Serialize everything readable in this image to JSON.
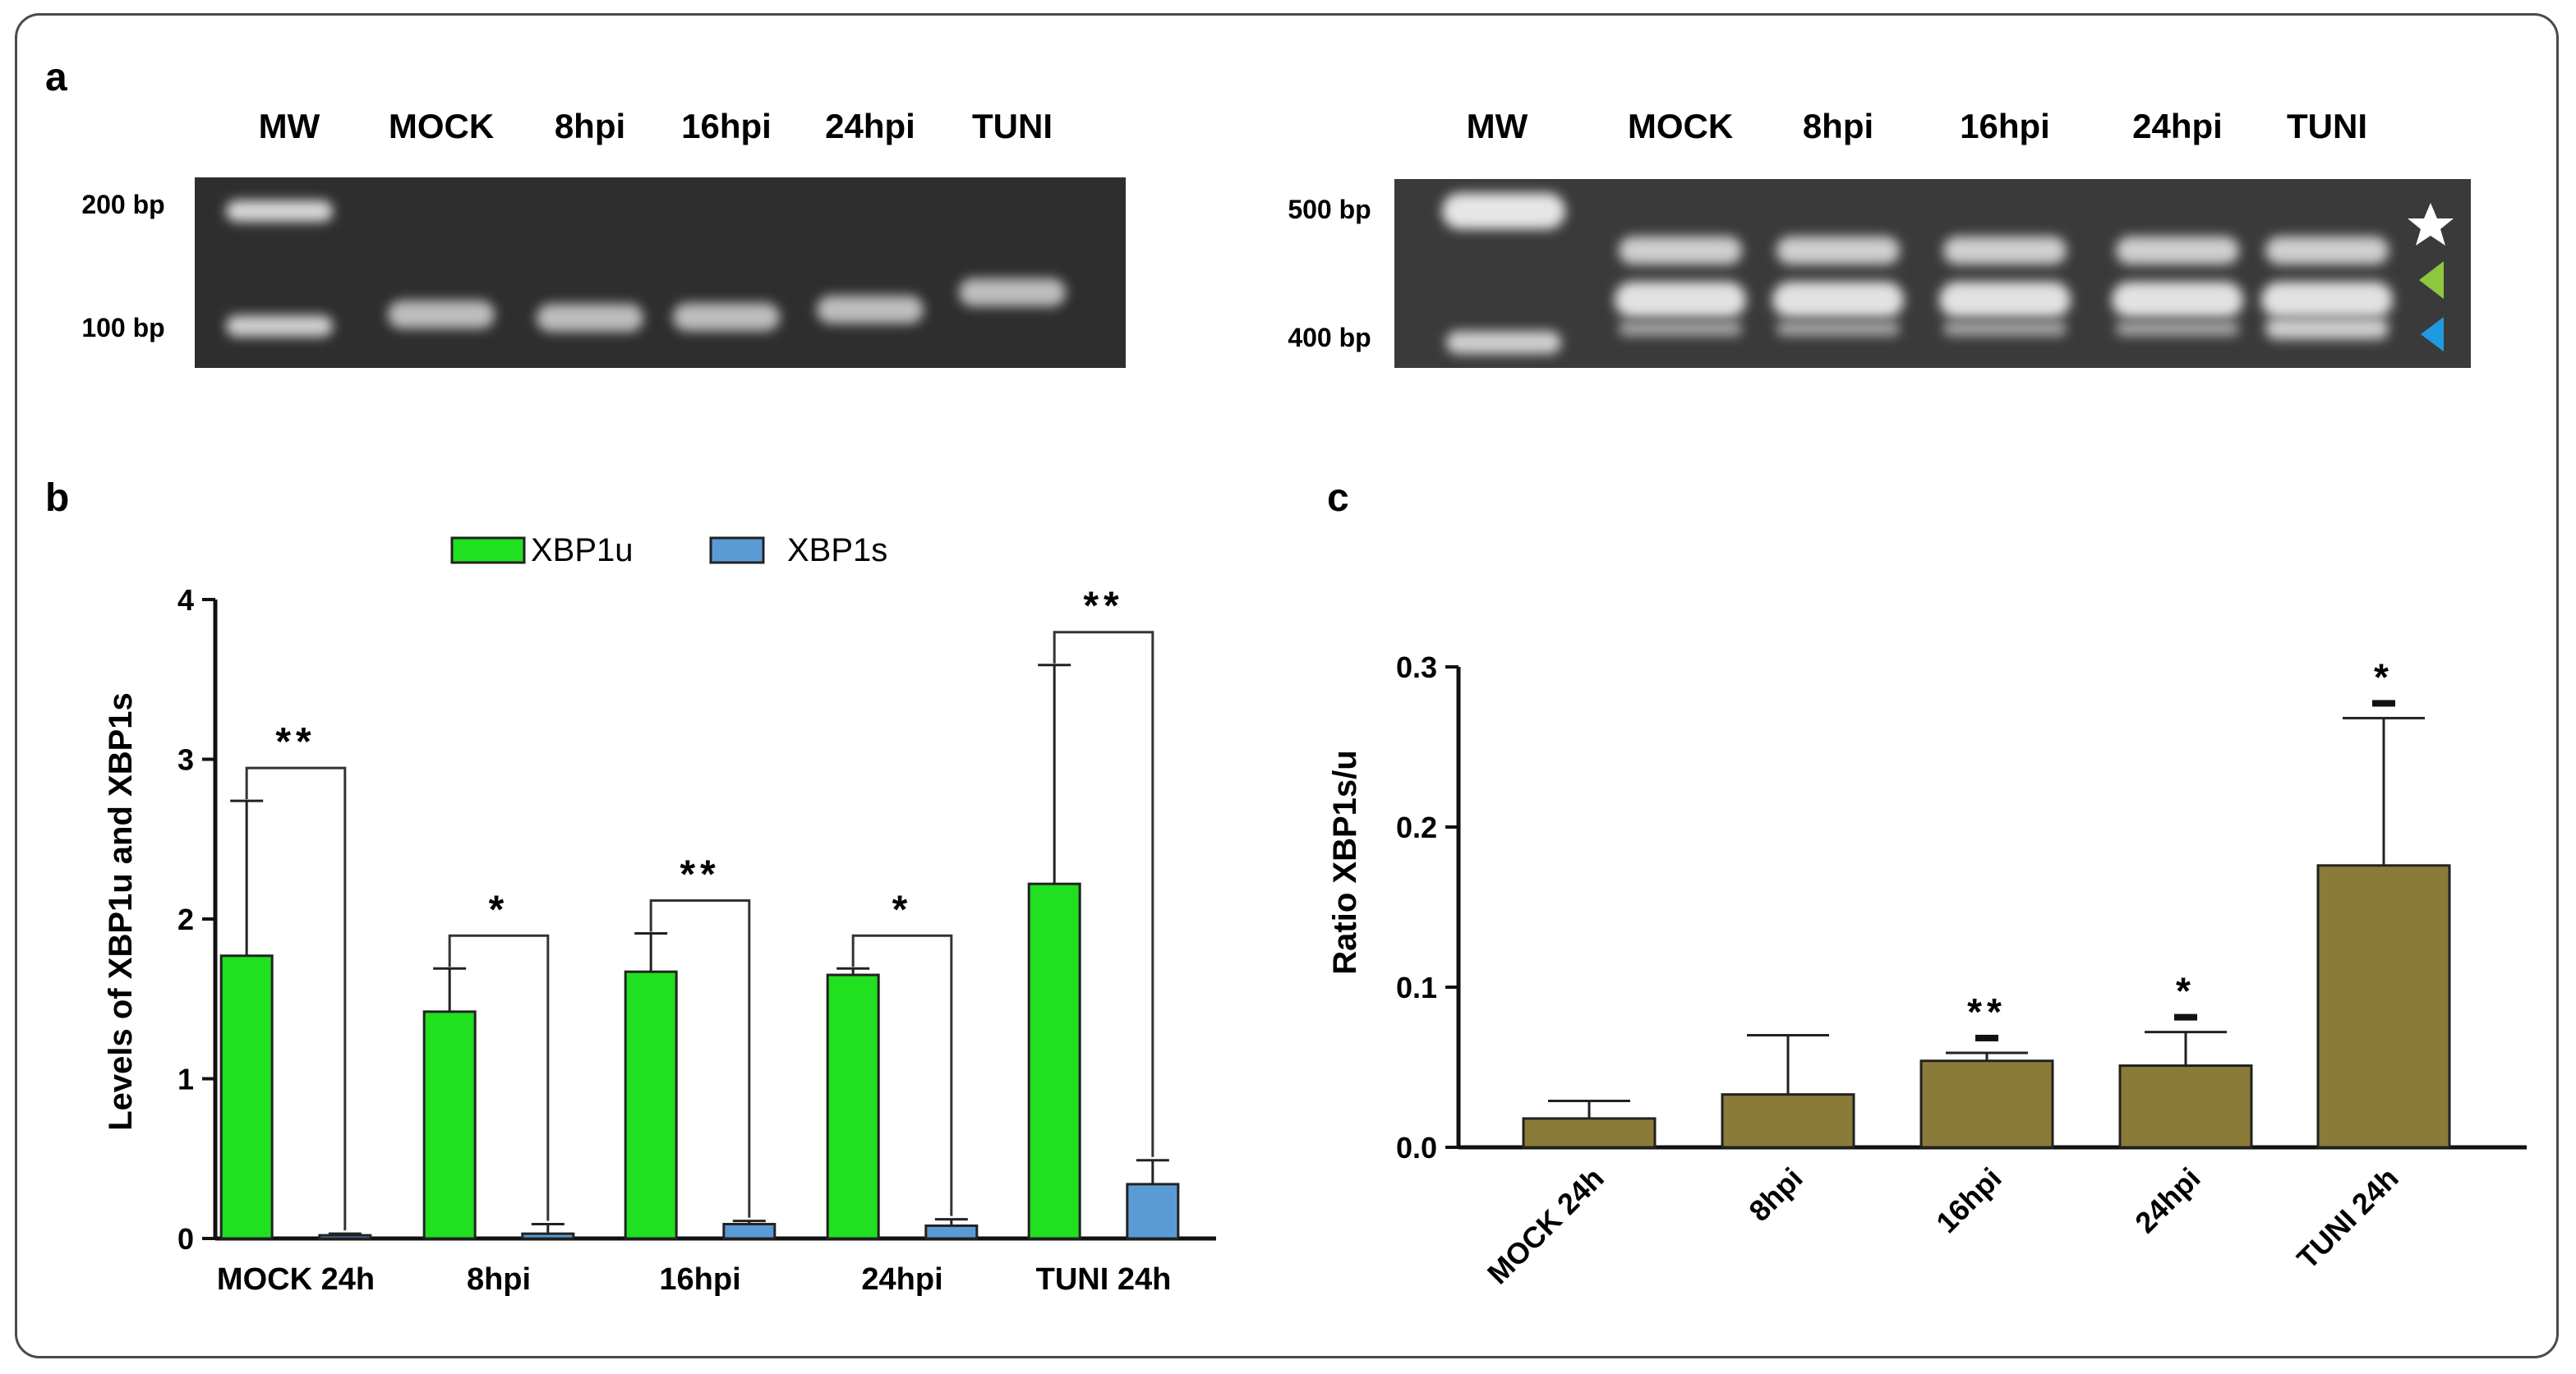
{
  "panel_labels": {
    "a": "a",
    "b": "b",
    "c": "c"
  },
  "gel_left": {
    "lanes": [
      "MW",
      "MOCK",
      "8hpi",
      "16hpi",
      "24hpi",
      "TUNI"
    ],
    "markers": [
      "200 bp",
      "100 bp"
    ]
  },
  "gel_right": {
    "lanes": [
      "MW",
      "MOCK",
      "8hpi",
      "16hpi",
      "24hpi",
      "TUNI"
    ],
    "markers": [
      "500 bp",
      "400 bp"
    ],
    "band_marks": [
      {
        "icon": "white-star-icon",
        "color": "#ffffff"
      },
      {
        "icon": "green-arrowhead-icon",
        "color": "#8dc63f"
      },
      {
        "icon": "blue-arrowhead-icon",
        "color": "#1e9be0"
      }
    ]
  },
  "chart_data": [
    {
      "type": "bar",
      "panel": "b",
      "categories": [
        "MOCK 24h",
        "8hpi",
        "16hpi",
        "24hpi",
        "TUNI 24h"
      ],
      "series": [
        {
          "name": "XBP1u",
          "color": "#20e020",
          "values": [
            1.77,
            1.42,
            1.67,
            1.65,
            2.22
          ],
          "errors": [
            0.97,
            0.27,
            0.24,
            0.04,
            1.37
          ]
        },
        {
          "name": "XBP1s",
          "color": "#5b9bd5",
          "values": [
            0.02,
            0.03,
            0.09,
            0.08,
            0.34
          ],
          "errors": [
            0.01,
            0.06,
            0.02,
            0.04,
            0.15
          ]
        }
      ],
      "significance": [
        "**",
        "*",
        "**",
        "*",
        "**"
      ],
      "xlabel": "",
      "ylabel": "Levels of XBP1u and XBP1s",
      "ylim": [
        0,
        4
      ],
      "yticks": [
        "0",
        "1",
        "2",
        "3",
        "4"
      ],
      "legend": "top-center"
    },
    {
      "type": "bar",
      "panel": "c",
      "categories": [
        "MOCK 24h",
        "8hpi",
        "16hpi",
        "24hpi",
        "TUNI 24h"
      ],
      "series": [
        {
          "color": "#8b7b38",
          "values": [
            0.018,
            0.033,
            0.054,
            0.051,
            0.176
          ],
          "errors": [
            0.011,
            0.037,
            0.005,
            0.021,
            0.092
          ]
        }
      ],
      "significance": [
        "",
        "",
        "**",
        "*",
        "*"
      ],
      "xlabel": "",
      "ylabel": "Ratio XBP1s/u",
      "ylim": [
        0,
        0.3
      ],
      "yticks": [
        "0.0",
        "0.1",
        "0.2",
        "0.3"
      ]
    }
  ]
}
